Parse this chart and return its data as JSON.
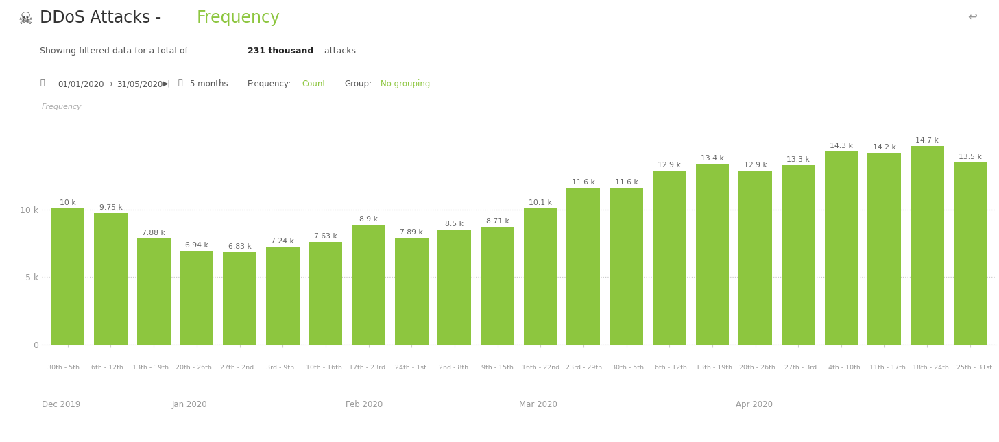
{
  "title_prefix": "DDoS Attacks - ",
  "title_suffix": "Frequency",
  "bar_color": "#8dc63f",
  "background_color": "#ffffff",
  "grid_color": "#cccccc",
  "categories": [
    "30th - 5th",
    "6th - 12th",
    "13th - 19th",
    "20th - 26th",
    "27th - 2nd",
    "3rd - 9th",
    "10th - 16th",
    "17th - 23rd",
    "24th - 1st",
    "2nd - 8th",
    "9th - 15th",
    "16th - 22nd",
    "23rd - 29th",
    "30th - 5th",
    "6th - 12th",
    "13th - 19th",
    "20th - 26th",
    "27th - 3rd",
    "4th - 10th",
    "11th - 17th",
    "18th - 24th",
    "25th - 31st"
  ],
  "month_labels": [
    {
      "label": "Dec 2019",
      "index": 0
    },
    {
      "label": "Jan 2020",
      "index": 3
    },
    {
      "label": "Feb 2020",
      "index": 7
    },
    {
      "label": "Mar 2020",
      "index": 11
    },
    {
      "label": "Apr 2020",
      "index": 16
    }
  ],
  "values": [
    10100,
    9750,
    7880,
    6940,
    6830,
    7240,
    7630,
    8900,
    7890,
    8500,
    8710,
    10100,
    11600,
    11600,
    12900,
    13400,
    12900,
    13300,
    14300,
    14200,
    14700,
    13500
  ],
  "bar_labels": [
    "10 k",
    "9.75 k",
    "7.88 k",
    "6.94 k",
    "6.83 k",
    "7.24 k",
    "7.63 k",
    "8.9 k",
    "7.89 k",
    "8.5 k",
    "8.71 k",
    "10.1 k",
    "11.6 k",
    "11.6 k",
    "12.9 k",
    "13.4 k",
    "12.9 k",
    "13.3 k",
    "14.3 k",
    "14.2 k",
    "14.7 k",
    "13.5 k"
  ],
  "yticks": [
    0,
    5000,
    10000
  ],
  "ytick_labels": [
    "0",
    "5 k",
    "10 k"
  ],
  "ylim": [
    0,
    17000
  ],
  "title_color_prefix": "#333333",
  "title_color_suffix": "#8dc63f",
  "subtitle_color": "#555555",
  "axis_label_color": "#aaaaaa",
  "tick_label_color": "#999999",
  "bar_label_color": "#666666",
  "info_color": "#777777",
  "green_color": "#8dc63f"
}
